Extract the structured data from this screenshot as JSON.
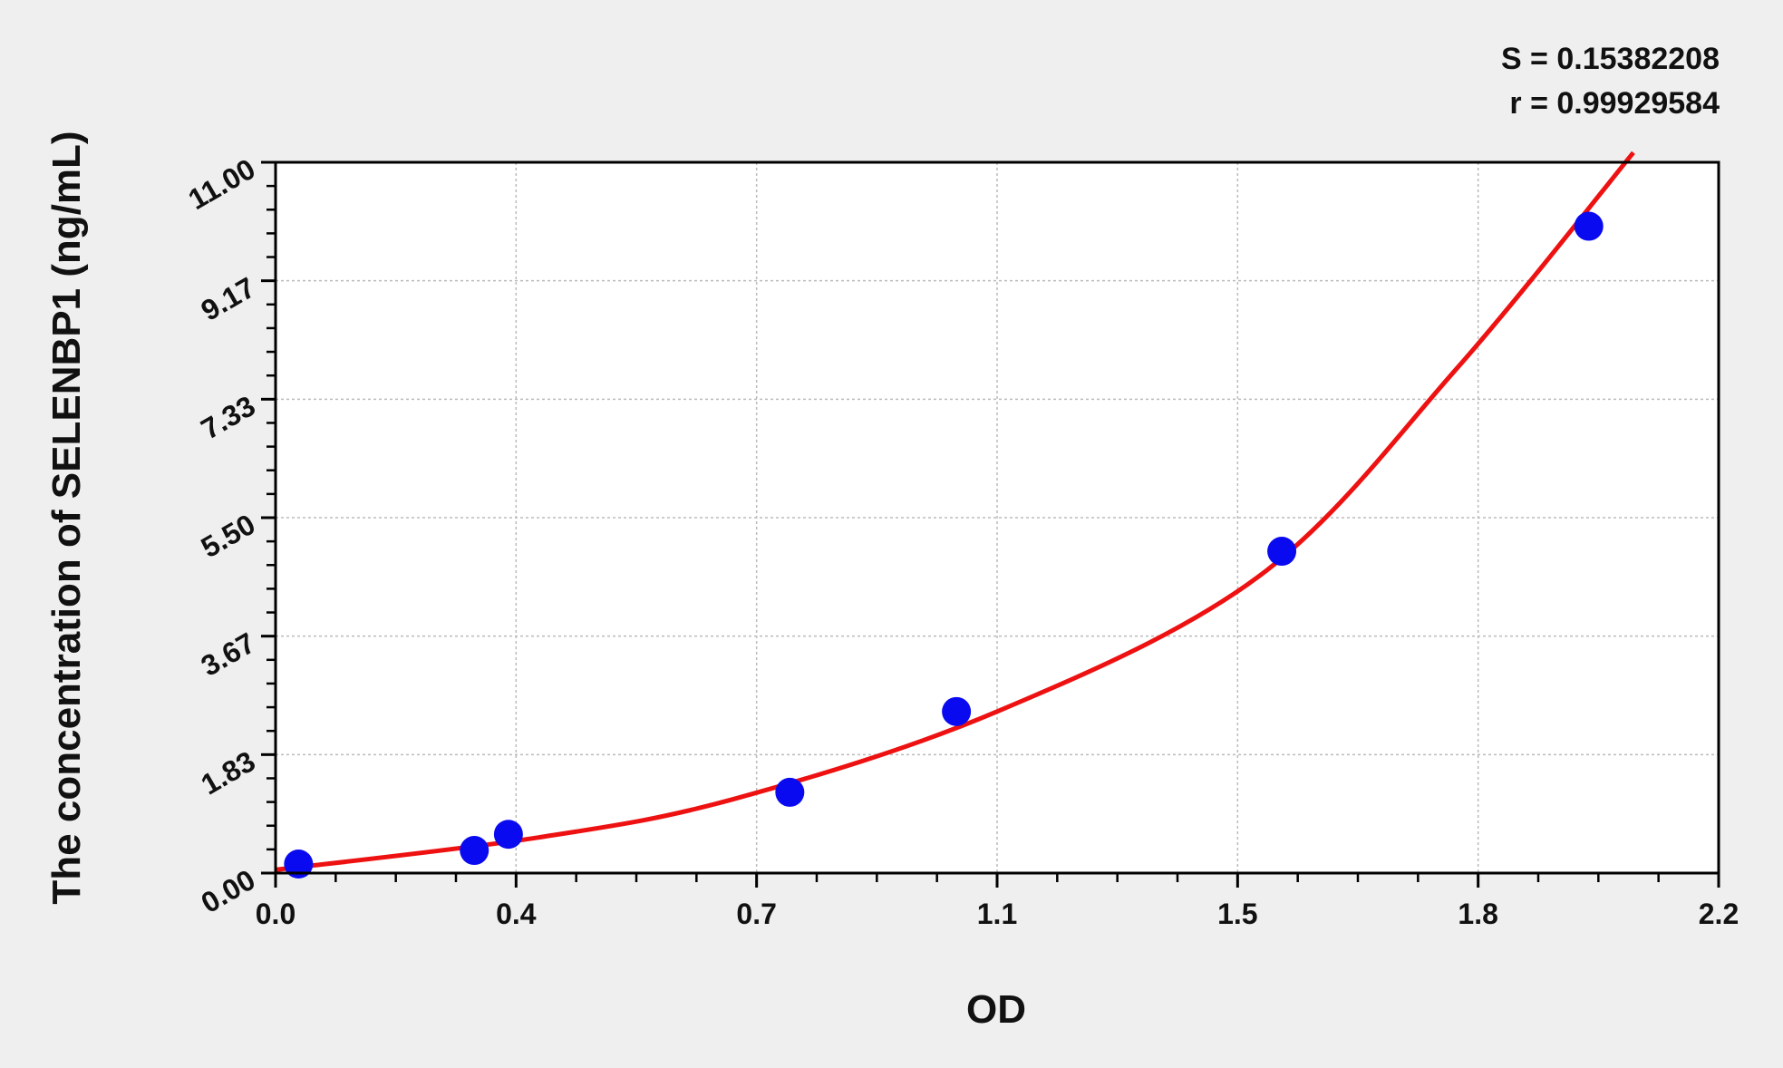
{
  "chart_data": {
    "type": "scatter",
    "xlabel": "OD",
    "ylabel": "The concentration of SELENBP1 (ng/mL)",
    "xlim": [
      0,
      2.2
    ],
    "ylim": [
      0,
      11
    ],
    "x_ticks": [
      "0.0",
      "0.4",
      "0.7",
      "1.1",
      "1.5",
      "1.8",
      "2.2"
    ],
    "y_ticks": [
      "0.00",
      "1.83",
      "3.67",
      "5.50",
      "7.33",
      "9.17",
      "11.00"
    ],
    "grid": true,
    "stats": [
      "S = 0.15382208",
      "r = 0.99929584"
    ],
    "points": {
      "x": [
        0.035,
        0.303,
        0.355,
        0.784,
        1.038,
        1.534,
        2.002
      ],
      "y": [
        0.14,
        0.35,
        0.6,
        1.25,
        2.5,
        4.98,
        10.01
      ],
      "color": "#0a0af0"
    },
    "fit_curve": {
      "x": [
        0.0,
        0.4,
        0.7,
        1.1,
        1.5,
        1.8,
        2.07
      ],
      "y": [
        0.05,
        0.55,
        1.15,
        2.5,
        4.6,
        7.8,
        11.15
      ],
      "color": "#ee1111"
    }
  }
}
